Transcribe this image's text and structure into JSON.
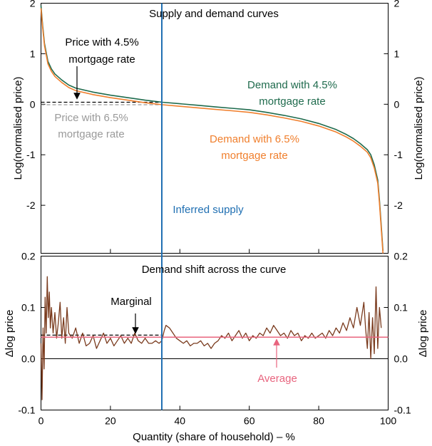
{
  "chart_data": [
    {
      "type": "line",
      "title": "Supply and demand curves",
      "xlabel": "",
      "ylabel_left": "Log(normalised price)",
      "ylabel_right": "Log(normalised price)",
      "xlim": [
        0,
        100
      ],
      "ylim": [
        -2.95,
        2
      ],
      "yticks": [
        2,
        1,
        0,
        -1,
        -2
      ],
      "ytick_labels": [
        "2",
        "1",
        "0",
        "-1",
        "-2"
      ],
      "colors": {
        "demand45": "#1f6b4d",
        "demand65": "#f07f2d",
        "supply": "#1f6fb2",
        "guide": "#000000",
        "guide_gray": "#9a9a9a"
      },
      "series": [
        {
          "name": "Demand with 4.5% mortgage rate",
          "x": [
            0,
            0.5,
            1,
            2,
            3,
            4,
            6,
            8,
            10,
            15,
            20,
            25,
            30,
            35,
            40,
            45,
            50,
            55,
            60,
            65,
            70,
            75,
            80,
            85,
            88,
            90,
            92,
            94,
            95,
            96,
            97,
            97.5,
            98,
            98.5
          ],
          "y": [
            1.95,
            1.55,
            1.2,
            0.85,
            0.7,
            0.6,
            0.48,
            0.38,
            0.32,
            0.24,
            0.18,
            0.13,
            0.08,
            0.04,
            0.01,
            -0.02,
            -0.05,
            -0.08,
            -0.11,
            -0.16,
            -0.22,
            -0.29,
            -0.38,
            -0.5,
            -0.6,
            -0.68,
            -0.78,
            -0.9,
            -1.0,
            -1.2,
            -1.5,
            -1.9,
            -2.4,
            -2.9
          ]
        },
        {
          "name": "Demand with 6.5% mortgage rate",
          "x": [
            0,
            0.5,
            1,
            2,
            3,
            4,
            6,
            8,
            10,
            15,
            20,
            25,
            30,
            35,
            40,
            45,
            50,
            55,
            60,
            65,
            70,
            75,
            80,
            85,
            88,
            90,
            92,
            94,
            95,
            96,
            97,
            97.5,
            98,
            98.5
          ],
          "y": [
            1.9,
            1.5,
            1.16,
            0.8,
            0.65,
            0.55,
            0.43,
            0.33,
            0.27,
            0.19,
            0.13,
            0.08,
            0.03,
            -0.01,
            -0.04,
            -0.07,
            -0.1,
            -0.13,
            -0.16,
            -0.21,
            -0.27,
            -0.34,
            -0.43,
            -0.55,
            -0.65,
            -0.73,
            -0.83,
            -0.95,
            -1.06,
            -1.26,
            -1.56,
            -1.96,
            -2.46,
            -2.95
          ]
        }
      ],
      "guides": {
        "price45": 0.04,
        "price65": -0.01,
        "supply_x": 34.8
      },
      "annotations": {
        "price45_l1": "Price with 4.5%",
        "price45_l2": "mortgage rate",
        "price65_l1": "Price with 6.5%",
        "price65_l2": "mortgage rate",
        "demand45_l1": "Demand with 4.5%",
        "demand45_l2": "mortgage rate",
        "demand65_l1": "Demand with 6.5%",
        "demand65_l2": "mortgage rate",
        "supply": "Inferred supply"
      }
    },
    {
      "type": "line",
      "title": "Demand shift across the curve",
      "xlabel": "Quantity (share of household) – %",
      "ylabel_left": "Δlog price",
      "ylabel_right": "Δlog price",
      "xlim": [
        0,
        100
      ],
      "ylim": [
        -0.1,
        0.2
      ],
      "xticks": [
        0,
        20,
        40,
        60,
        80,
        100
      ],
      "xtick_labels": [
        "0",
        "20",
        "40",
        "60",
        "80",
        "100"
      ],
      "yticks": [
        0.2,
        0.1,
        0.0,
        -0.1
      ],
      "ytick_labels": [
        "0.2",
        "0.1",
        "0.0",
        "-0.1"
      ],
      "colors": {
        "shift": "#7a3b1e",
        "average": "#e8647e",
        "marginal": "#000000",
        "zero": "#000000"
      },
      "series": [
        {
          "name": "Demand shift",
          "x": [
            0,
            0.3,
            0.6,
            0.9,
            1.2,
            1.5,
            1.8,
            2.1,
            2.4,
            2.7,
            3,
            3.5,
            4,
            4.5,
            5,
            5.5,
            6,
            6.5,
            7,
            7.5,
            8,
            9,
            10,
            11,
            12,
            13,
            14,
            15,
            16,
            17,
            18,
            19,
            20,
            21,
            22,
            23,
            24,
            25,
            26,
            27,
            28,
            29,
            30,
            31,
            32,
            33,
            34,
            34.8,
            35.5,
            36,
            37,
            38,
            39,
            40,
            41,
            42,
            43,
            44,
            45,
            46,
            47,
            48,
            49,
            50,
            51,
            52,
            53,
            54,
            55,
            56,
            57,
            58,
            59,
            60,
            61,
            62,
            63,
            64,
            65,
            66,
            67,
            68,
            69,
            70,
            71,
            72,
            73,
            74,
            75,
            76,
            77,
            78,
            79,
            80,
            81,
            82,
            83,
            84,
            85,
            86,
            87,
            88,
            89,
            90,
            91,
            92,
            93,
            93.5,
            94,
            94.5,
            95,
            95.5,
            96,
            96.5,
            97,
            97.5,
            98
          ],
          "y": [
            0.03,
            -0.08,
            0.06,
            -0.02,
            0.12,
            0.05,
            0.16,
            0.08,
            0.13,
            0.06,
            0.1,
            0.05,
            0.09,
            0.04,
            0.07,
            0.11,
            0.04,
            0.08,
            0.03,
            0.1,
            0.05,
            0.04,
            0.06,
            0.03,
            0.05,
            0.025,
            0.03,
            0.045,
            0.02,
            0.035,
            0.05,
            0.03,
            0.04,
            0.025,
            0.035,
            0.045,
            0.03,
            0.04,
            0.03,
            0.05,
            0.035,
            0.03,
            0.04,
            0.03,
            0.03,
            0.035,
            0.03,
            0.035,
            0.055,
            0.065,
            0.06,
            0.05,
            0.04,
            0.035,
            0.03,
            0.035,
            0.025,
            0.03,
            0.03,
            0.035,
            0.025,
            0.03,
            0.02,
            0.03,
            0.035,
            0.045,
            0.04,
            0.05,
            0.035,
            0.045,
            0.055,
            0.04,
            0.05,
            0.035,
            0.045,
            0.04,
            0.05,
            0.045,
            0.06,
            0.05,
            0.065,
            0.055,
            0.045,
            0.05,
            0.04,
            0.055,
            0.045,
            0.05,
            0.035,
            0.045,
            0.04,
            0.05,
            0.04,
            0.045,
            0.05,
            0.04,
            0.055,
            0.045,
            0.06,
            0.05,
            0.07,
            0.055,
            0.08,
            0.06,
            0.1,
            0.065,
            0.11,
            0.06,
            0.02,
            0.09,
            0.0,
            0.08,
            0.01,
            0.14,
            0.02,
            0.1,
            0.06
          ]
        }
      ],
      "guides": {
        "average": 0.042,
        "marginal": 0.046,
        "zero": 0.0
      },
      "annotations": {
        "marginal": "Marginal",
        "average": "Average"
      }
    }
  ]
}
